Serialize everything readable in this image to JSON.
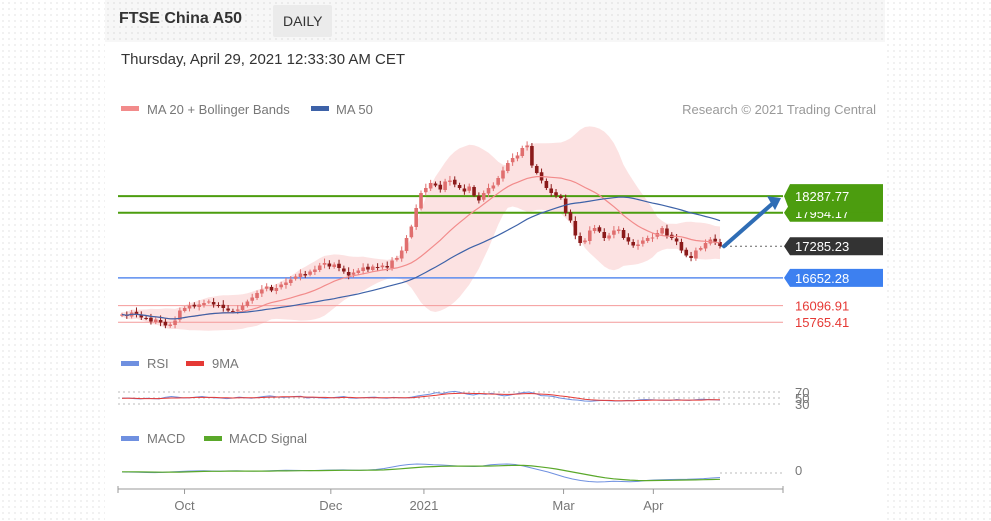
{
  "header": {
    "title": "FTSE China A50",
    "period": "DAILY",
    "timestamp": "Thursday, April 29, 2021 12:33:30 AM CET"
  },
  "legend": {
    "ma20": "MA 20 + Bollinger Bands",
    "ma50": "MA 50",
    "copyright": "Research © 2021 Trading Central",
    "rsi": "RSI",
    "rsi_ma": "9MA",
    "macd": "MACD",
    "macd_signal": "MACD Signal"
  },
  "colors": {
    "bull": "#e06f6f",
    "bear": "#8b1a1a",
    "ma20": "#f28b8b",
    "ma50": "#3d62a8",
    "band": "#fbd3d3",
    "resistance": "#4c9d0f",
    "support": "#5b8def",
    "weak": "#f49a9a",
    "rsi": "#6f90e0",
    "rsi_ma": "#e53935",
    "macd": "#6f90e0",
    "macd_signal": "#5aa82a"
  },
  "chart_data": [
    {
      "type": "candlestick",
      "panel": "price",
      "x_axis": {
        "labels": [
          "Oct",
          "Dec",
          "2021",
          "Mar",
          "Apr"
        ]
      },
      "ylim": [
        15350,
        19650
      ],
      "price_tags": [
        {
          "value": 18287.77,
          "label": "18287.77",
          "style": "resistance-strong"
        },
        {
          "value": 17954.17,
          "label": "17954.17",
          "style": "resistance"
        },
        {
          "value": 17285.23,
          "label": "17285.23",
          "style": "last"
        },
        {
          "value": 16652.28,
          "label": "16652.28",
          "style": "support"
        },
        {
          "value": 16096.91,
          "label": "16096.91",
          "style": "weak"
        },
        {
          "value": 15765.41,
          "label": "15765.41",
          "style": "weak"
        }
      ],
      "closes": [
        15920,
        15890,
        15960,
        15930,
        15860,
        15840,
        15780,
        15820,
        15760,
        15700,
        15720,
        15800,
        16000,
        16050,
        16100,
        16080,
        16120,
        16150,
        16180,
        16120,
        16100,
        16050,
        16000,
        15980,
        16020,
        16100,
        16180,
        16260,
        16350,
        16420,
        16480,
        16400,
        16450,
        16520,
        16560,
        16620,
        16680,
        16740,
        16700,
        16780,
        16820,
        16900,
        16950,
        16880,
        16920,
        16850,
        16780,
        16700,
        16760,
        16800,
        16860,
        16820,
        16880,
        16850,
        16900,
        16860,
        17000,
        17050,
        17200,
        17450,
        17680,
        18050,
        18350,
        18450,
        18550,
        18500,
        18420,
        18580,
        18600,
        18520,
        18450,
        18380,
        18480,
        18300,
        18200,
        18350,
        18450,
        18500,
        18650,
        18800,
        18950,
        19050,
        19100,
        19250,
        19300,
        18900,
        18750,
        18600,
        18450,
        18350,
        18300,
        18250,
        17950,
        17800,
        17500,
        17350,
        17400,
        17600,
        17650,
        17580,
        17450,
        17500,
        17600,
        17620,
        17450,
        17380,
        17300,
        17320,
        17400,
        17450,
        17460,
        17550,
        17650,
        17500,
        17450,
        17380,
        17200,
        17100,
        17050,
        17200,
        17250,
        17350,
        17420,
        17380,
        17290
      ]
    },
    {
      "type": "line",
      "panel": "rsi",
      "levels": [
        70,
        50,
        30
      ],
      "level_labels": [
        "70",
        "50",
        "30"
      ],
      "series": [
        {
          "name": "RSI",
          "values": [
            49,
            50,
            48,
            47,
            49,
            48,
            47,
            52,
            55,
            53,
            50,
            51,
            53,
            55,
            52,
            51,
            50,
            48,
            50,
            53,
            51,
            49,
            52,
            55,
            57,
            54,
            52,
            53,
            55,
            56,
            50,
            52,
            51,
            49,
            51,
            53,
            55,
            50,
            49,
            51,
            52,
            53,
            50,
            49,
            52,
            51,
            50,
            53,
            57,
            60,
            63,
            68,
            65,
            70,
            72,
            68,
            63,
            60,
            64,
            62,
            66,
            61,
            57,
            60,
            64,
            68,
            70,
            65,
            58,
            57,
            55,
            50,
            47,
            44,
            43,
            40,
            39,
            41,
            42,
            41,
            40,
            40,
            42,
            41,
            44,
            45,
            44,
            43,
            42,
            42,
            45,
            43,
            42,
            44,
            46,
            45,
            44,
            43
          ]
        },
        {
          "name": "9MA",
          "values": [
            49,
            49,
            49,
            48,
            48,
            48,
            48,
            49,
            50,
            50,
            51,
            51,
            52,
            52,
            52,
            52,
            51,
            51,
            50,
            51,
            51,
            51,
            51,
            52,
            53,
            53,
            54,
            54,
            54,
            54,
            53,
            53,
            52,
            52,
            51,
            51,
            52,
            52,
            51,
            51,
            51,
            51,
            51,
            51,
            51,
            51,
            51,
            51,
            53,
            55,
            57,
            59,
            62,
            64,
            65,
            66,
            66,
            65,
            65,
            64,
            63,
            63,
            62,
            62,
            63,
            64,
            65,
            64,
            63,
            62,
            60,
            57,
            55,
            52,
            49,
            46,
            44,
            43,
            42,
            42,
            41,
            41,
            41,
            41,
            42,
            42,
            43,
            43,
            43,
            43,
            43,
            43,
            43,
            43,
            43,
            44,
            44,
            44
          ]
        }
      ]
    },
    {
      "type": "line",
      "panel": "macd",
      "levels": [
        0
      ],
      "level_labels": [
        "0"
      ],
      "series": [
        {
          "name": "MACD",
          "values": [
            20,
            18,
            15,
            10,
            8,
            12,
            22,
            30,
            38,
            42,
            45,
            40,
            38,
            42,
            44,
            40,
            38,
            40,
            45,
            50,
            55,
            52,
            50,
            48,
            52,
            58,
            60,
            62,
            58,
            55,
            60,
            70,
            90,
            120,
            150,
            170,
            180,
            175,
            165,
            160,
            150,
            140,
            135,
            130,
            140,
            165,
            175,
            180,
            170,
            140,
            100,
            60,
            20,
            -30,
            -80,
            -120,
            -150,
            -170,
            -180,
            -175,
            -165,
            -170,
            -175,
            -168,
            -150,
            -140,
            -135,
            -130,
            -128,
            -125,
            -120,
            -112,
            -100,
            -90
          ]
        },
        {
          "name": "MACD Signal",
          "values": [
            25,
            24,
            22,
            20,
            17,
            16,
            17,
            19,
            23,
            27,
            31,
            34,
            35,
            37,
            38,
            38,
            38,
            38,
            39,
            41,
            43,
            45,
            46,
            47,
            48,
            50,
            52,
            54,
            55,
            55,
            56,
            58,
            63,
            72,
            84,
            97,
            110,
            121,
            129,
            135,
            138,
            139,
            139,
            137,
            137,
            140,
            145,
            150,
            154,
            151,
            141,
            125,
            105,
            80,
            50,
            20,
            -10,
            -40,
            -70,
            -95,
            -115,
            -130,
            -142,
            -150,
            -152,
            -150,
            -148,
            -145,
            -142,
            -140,
            -137,
            -134,
            -130,
            -125
          ]
        }
      ]
    }
  ]
}
